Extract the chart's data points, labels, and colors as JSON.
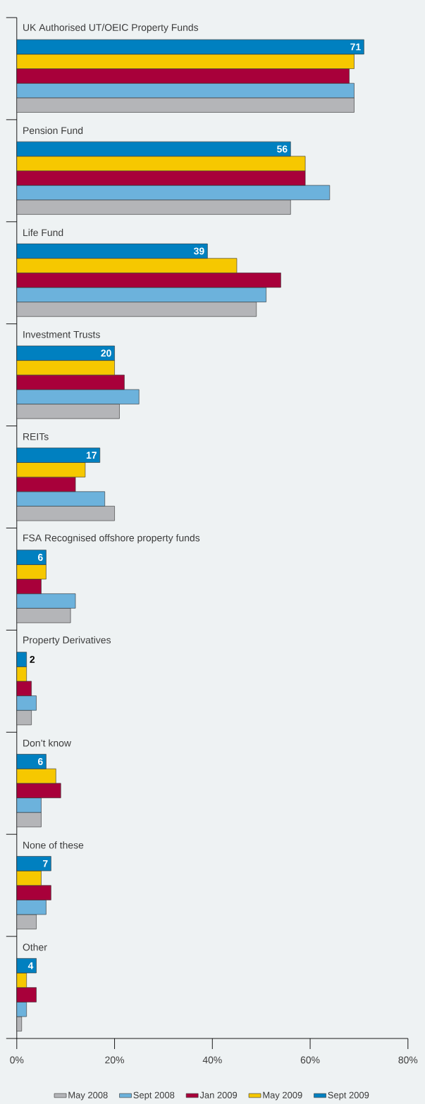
{
  "chart_data": {
    "type": "bar",
    "orientation": "horizontal",
    "categories": [
      "UK Authorised UT/OEIC Property Funds",
      "Pension Fund",
      "Life Fund",
      "Investment Trusts",
      "REITs",
      "FSA Recognised offshore property funds",
      "Property Derivatives",
      "Don’t know",
      "None of these",
      "Other"
    ],
    "series": [
      {
        "name": "May 2008",
        "color": "#b4b5b8",
        "values": [
          69,
          56,
          49,
          21,
          20,
          11,
          3,
          5,
          4,
          1
        ]
      },
      {
        "name": "Sept 2008",
        "color": "#6cb2dc",
        "values": [
          69,
          64,
          51,
          25,
          18,
          12,
          4,
          5,
          6,
          2
        ]
      },
      {
        "name": "Jan 2009",
        "color": "#a8003a",
        "values": [
          68,
          59,
          54,
          22,
          12,
          5,
          3,
          9,
          7,
          4
        ]
      },
      {
        "name": "May 2009",
        "color": "#f6c800",
        "values": [
          69,
          59,
          45,
          20,
          14,
          6,
          2,
          8,
          5,
          2
        ]
      },
      {
        "name": "Sept 2009",
        "color": "#0080c0",
        "values": [
          71,
          56,
          39,
          20,
          17,
          6,
          2,
          6,
          7,
          4
        ],
        "value_labels": [
          "71",
          "56",
          "39",
          "20",
          "17",
          "6",
          "2",
          "6",
          "7",
          "4"
        ]
      }
    ],
    "xlim": [
      0,
      80
    ],
    "xticks": [
      {
        "value": 0,
        "label": "0%"
      },
      {
        "value": 20,
        "label": "20%"
      },
      {
        "value": 40,
        "label": "40%"
      },
      {
        "value": 60,
        "label": "60%"
      },
      {
        "value": 80,
        "label": "80%"
      }
    ],
    "legend": "bottom"
  }
}
